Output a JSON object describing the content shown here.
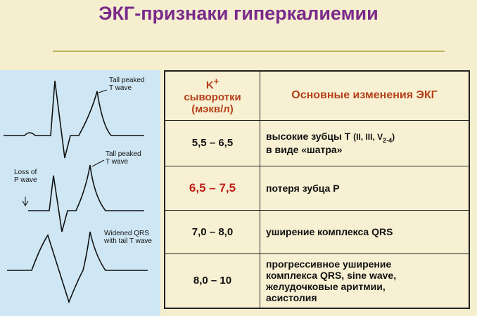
{
  "title": "ЭКГ-признаки гиперкалиемии",
  "diagram": {
    "labels": [
      [
        "Tall peaked",
        "T wave"
      ],
      [
        "Tall peaked",
        "T wave"
      ],
      [
        "Loss of",
        "P wave"
      ],
      [
        "Widened QRS",
        "with tail T wave"
      ]
    ]
  },
  "table": {
    "header": {
      "potassium_symbol": "K",
      "potassium_charge": "+",
      "potassium_unit": [
        "сыворотки",
        "(мэкв/л)"
      ],
      "changes": "Основные изменения ЭКГ"
    },
    "rows": [
      {
        "range": "5,5 – 6,5",
        "changes": [
          "высокие зубцы Т",
          "(II, III, V",
          "2-4",
          ")",
          "в виде «шатра»"
        ]
      },
      {
        "range": "6,5 – 7,5",
        "changes": [
          "потеря зубца Р"
        ]
      },
      {
        "range": "7,0 – 8,0",
        "changes": [
          "уширение комплекса QRS"
        ]
      },
      {
        "range": "8,0 – 10",
        "changes": [
          "прогрессивное уширение",
          "комплекса QRS, sine wave,",
          "желудочковые аритмии,",
          "асистолия"
        ]
      }
    ]
  }
}
